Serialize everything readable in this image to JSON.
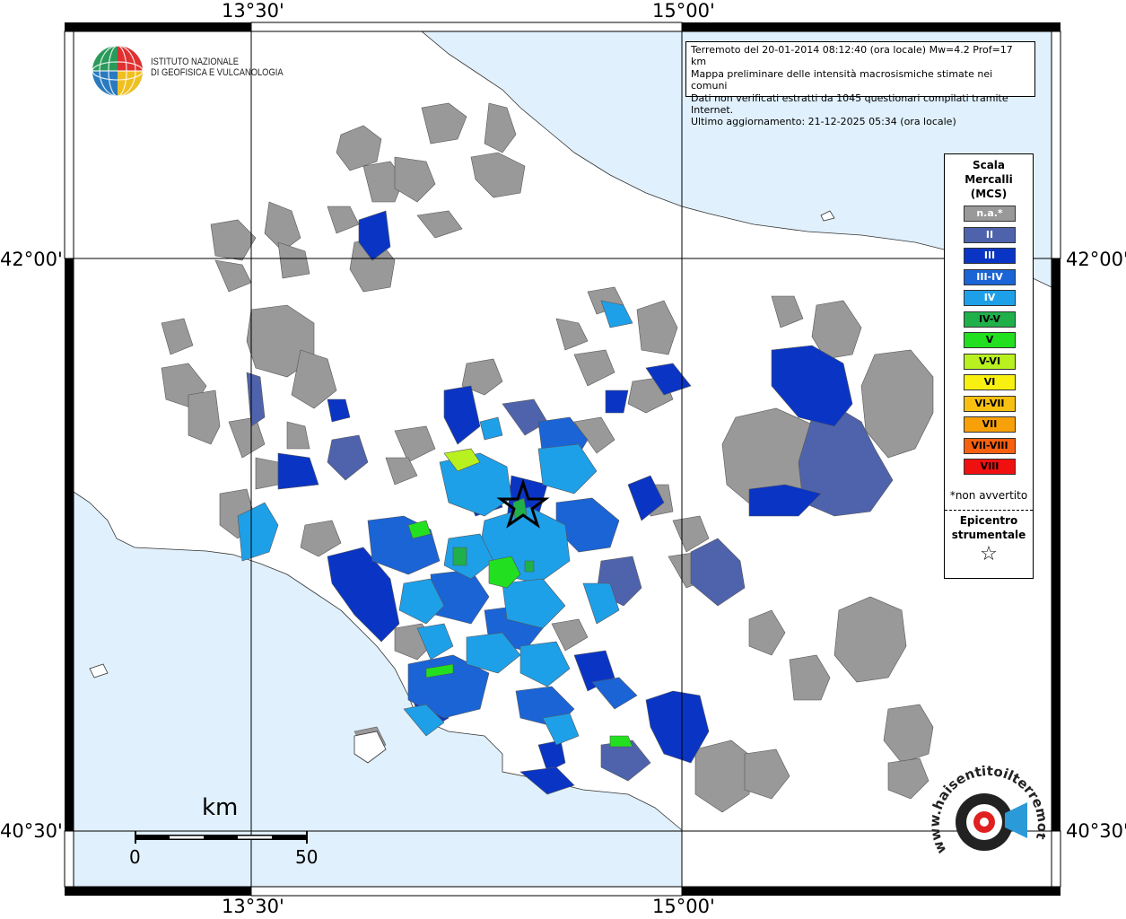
{
  "frame_labels": {
    "top_left": "13°30'",
    "top_right": "15°00'",
    "bottom_left": "13°30'",
    "bottom_right": "15°00'",
    "left_upper": "42°00'",
    "left_lower": "40°30'",
    "right_upper": "42°00'",
    "right_lower": "40°30'"
  },
  "logo": {
    "line1": "ISTITUTO NAZIONALE",
    "line2": "DI GEOFISICA E VULCANOLOGIA"
  },
  "info": {
    "line1": "Terremoto del 20-01-2014 08:12:40 (ora locale) Mw=4.2 Prof=17 km",
    "line2": "Mappa preliminare delle intensità macrosismiche stimate nei comuni",
    "line3": "Dati non verificati estratti da 1045 questionari compilati tramite Internet.",
    "line4": "Ultimo aggiornamento: 21-12-2025 05:34 (ora locale)"
  },
  "legend": {
    "title1": "Scala",
    "title2": "Mercalli",
    "title3": "(MCS)",
    "items": [
      {
        "label": "n.a.*",
        "color": "#999999",
        "text_color": "#ffffff"
      },
      {
        "label": "II",
        "color": "#4f63ad",
        "text_color": "#ffffff"
      },
      {
        "label": "III",
        "color": "#0a35c4",
        "text_color": "#ffffff"
      },
      {
        "label": "III-IV",
        "color": "#1a64d6",
        "text_color": "#ffffff"
      },
      {
        "label": "IV",
        "color": "#1ea0e8",
        "text_color": "#ffffff"
      },
      {
        "label": "IV-V",
        "color": "#20b04a",
        "text_color": "#000000"
      },
      {
        "label": "V",
        "color": "#22e020",
        "text_color": "#000000"
      },
      {
        "label": "V-VI",
        "color": "#b8f020",
        "text_color": "#000000"
      },
      {
        "label": "VI",
        "color": "#f8f010",
        "text_color": "#000000"
      },
      {
        "label": "VI-VII",
        "color": "#f8c010",
        "text_color": "#000000"
      },
      {
        "label": "VII",
        "color": "#f8a008",
        "text_color": "#000000"
      },
      {
        "label": "VII-VIII",
        "color": "#f86010",
        "text_color": "#000000"
      },
      {
        "label": "VIII",
        "color": "#f01010",
        "text_color": "#000000"
      }
    ],
    "note": "*non avvertito",
    "epi1": "Epicentro",
    "epi2": "strumentale",
    "star": "☆"
  },
  "scale": {
    "unit": "km",
    "start": "0",
    "end": "50"
  },
  "badge": {
    "text": "www.haisentitoilterremoto.it"
  },
  "colors": {
    "sea": "#e0f0fc",
    "land": "#ffffff",
    "na": "#999999",
    "ii": "#4f63ad",
    "iii": "#0a35c4",
    "iiiiv": "#1a64d6",
    "iv": "#1ea0e8",
    "ivv": "#20b04a",
    "v": "#22e020",
    "vvi": "#b8f020"
  }
}
